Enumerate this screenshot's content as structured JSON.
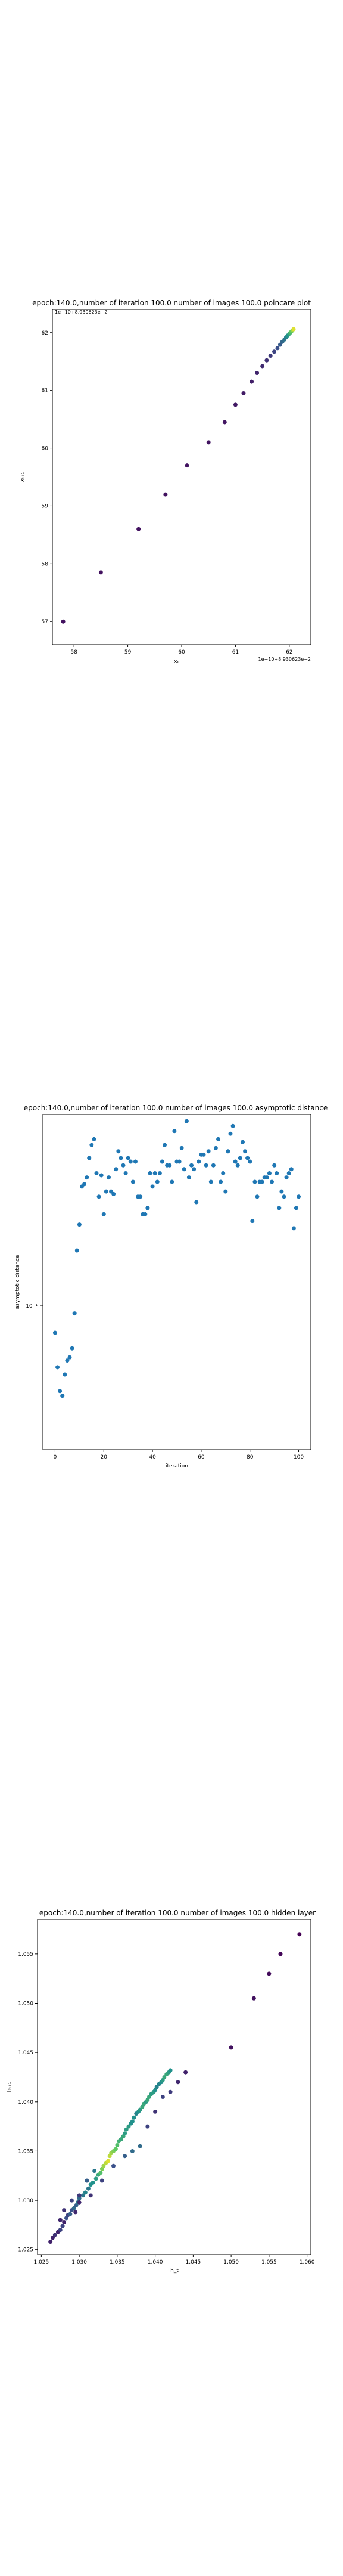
{
  "chart_data": [
    {
      "type": "scatter",
      "title": "epoch:140.0,number of iteration 100.0 number of images 100.0 poincare plot",
      "title_overlay": "1e−10+8.930623e−2",
      "xlabel": "xₜ",
      "ylabel": "xₜ₊₁",
      "offset_label": "1e−10+8.930623e−2",
      "xlim": [
        57.6,
        62.4
      ],
      "ylim": [
        56.6,
        62.4
      ],
      "xticks": [
        58,
        59,
        60,
        61,
        62
      ],
      "yticks": [
        57,
        58,
        59,
        60,
        61,
        62
      ],
      "colormap": "viridis",
      "points": [
        [
          57.8,
          57.0
        ],
        [
          58.5,
          57.85
        ],
        [
          59.2,
          58.6
        ],
        [
          59.7,
          59.2
        ],
        [
          60.1,
          59.7
        ],
        [
          60.5,
          60.1
        ],
        [
          60.8,
          60.45
        ],
        [
          61.0,
          60.75
        ],
        [
          61.15,
          60.95
        ],
        [
          61.3,
          61.15
        ],
        [
          61.4,
          61.3
        ],
        [
          61.5,
          61.42
        ],
        [
          61.58,
          61.52
        ],
        [
          61.65,
          61.6
        ],
        [
          61.72,
          61.67
        ],
        [
          61.78,
          61.73
        ],
        [
          61.83,
          61.79
        ],
        [
          61.87,
          61.84
        ],
        [
          61.91,
          61.88
        ],
        [
          61.94,
          61.92
        ],
        [
          61.97,
          61.95
        ],
        [
          62.0,
          61.98
        ],
        [
          62.02,
          62.0
        ],
        [
          62.04,
          62.02
        ],
        [
          62.06,
          62.04
        ],
        [
          62.08,
          62.06
        ]
      ]
    },
    {
      "type": "scatter",
      "title": "epoch:140.0,number of iteration 100.0  number of images 100.0 asymptotic distance",
      "xlabel": "iteration",
      "ylabel": "asymptotic distance",
      "xlim": [
        -5,
        105
      ],
      "yscale": "log",
      "ylim": [
        0.0105,
        0.42
      ],
      "xticks": [
        0,
        20,
        40,
        60,
        80,
        100
      ],
      "ytick_label": "10⁻¹",
      "color": "#1f77b4",
      "x": [
        0,
        1,
        2,
        3,
        4,
        5,
        6,
        7,
        8,
        9,
        10,
        11,
        12,
        13,
        14,
        15,
        16,
        17,
        18,
        19,
        20,
        21,
        22,
        23,
        24,
        25,
        26,
        27,
        28,
        29,
        30,
        31,
        32,
        33,
        34,
        35,
        36,
        37,
        38,
        39,
        40,
        41,
        42,
        43,
        44,
        45,
        46,
        47,
        48,
        49,
        50,
        51,
        52,
        53,
        54,
        55,
        56,
        57,
        58,
        59,
        60,
        61,
        62,
        63,
        64,
        65,
        66,
        67,
        68,
        69,
        70,
        71,
        72,
        73,
        74,
        75,
        76,
        77,
        78,
        79,
        80,
        81,
        82,
        83,
        84,
        85,
        86,
        87,
        88,
        89,
        90,
        91,
        92,
        93,
        94,
        95,
        96,
        97,
        98,
        99,
        100
      ],
      "y": [
        0.038,
        0.026,
        0.02,
        0.019,
        0.024,
        0.028,
        0.029,
        0.032,
        0.047,
        0.094,
        0.125,
        0.19,
        0.195,
        0.21,
        0.26,
        0.3,
        0.32,
        0.22,
        0.17,
        0.215,
        0.14,
        0.18,
        0.21,
        0.18,
        0.175,
        0.23,
        0.28,
        0.26,
        0.24,
        0.22,
        0.26,
        0.25,
        0.2,
        0.25,
        0.17,
        0.17,
        0.14,
        0.14,
        0.15,
        0.22,
        0.19,
        0.22,
        0.2,
        0.22,
        0.25,
        0.3,
        0.24,
        0.24,
        0.2,
        0.35,
        0.25,
        0.25,
        0.29,
        0.23,
        0.39,
        0.21,
        0.24,
        0.23,
        0.16,
        0.25,
        0.27,
        0.27,
        0.24,
        0.28,
        0.2,
        0.24,
        0.29,
        0.32,
        0.2,
        0.22,
        0.18,
        0.28,
        0.34,
        0.37,
        0.25,
        0.24,
        0.26,
        0.31,
        0.28,
        0.26,
        0.25,
        0.13,
        0.2,
        0.17,
        0.2,
        0.2,
        0.21,
        0.21,
        0.22,
        0.2,
        0.24,
        0.22,
        0.15,
        0.18,
        0.17,
        0.21,
        0.22,
        0.23,
        0.12,
        0.15,
        0.17
      ],
      "highlight_low_y": [
        0.11,
        0.12
      ]
    },
    {
      "type": "scatter",
      "title": "epoch:140.0,number of iteration 100.0  number of images 100.0 hidden layer",
      "xlabel": "h_t",
      "ylabel": "hₜ₊₁",
      "xlim": [
        1.0245,
        1.0605
      ],
      "ylim": [
        1.0245,
        1.0585
      ],
      "xticks": [
        "1.025",
        "1.030",
        "1.035",
        "1.040",
        "1.045",
        "1.050",
        "1.055",
        "1.060"
      ],
      "yticks": [
        "1.025",
        "1.030",
        "1.035",
        "1.040",
        "1.045",
        "1.050",
        "1.055"
      ],
      "colormap": "viridis",
      "points": [
        [
          1.0262,
          1.0258,
          0.1
        ],
        [
          1.0265,
          1.0262,
          0.1
        ],
        [
          1.0268,
          1.0265,
          0.15
        ],
        [
          1.0272,
          1.0268,
          0.1
        ],
        [
          1.0275,
          1.027,
          0.2
        ],
        [
          1.0278,
          1.0274,
          0.2
        ],
        [
          1.028,
          1.0278,
          0.1
        ],
        [
          1.0283,
          1.0282,
          0.25
        ],
        [
          1.0285,
          1.0285,
          0.2
        ],
        [
          1.0288,
          1.0286,
          0.3
        ],
        [
          1.029,
          1.029,
          0.25
        ],
        [
          1.0293,
          1.0292,
          0.35
        ],
        [
          1.0296,
          1.0295,
          0.3
        ],
        [
          1.0298,
          1.0298,
          0.4
        ],
        [
          1.03,
          1.0302,
          0.35
        ],
        [
          1.0305,
          1.0305,
          0.4
        ],
        [
          1.0308,
          1.0308,
          0.45
        ],
        [
          1.0312,
          1.0312,
          0.4
        ],
        [
          1.0315,
          1.0316,
          0.5
        ],
        [
          1.0318,
          1.0318,
          0.5
        ],
        [
          1.0322,
          1.0322,
          0.55
        ],
        [
          1.0325,
          1.0326,
          0.6
        ],
        [
          1.0328,
          1.0328,
          0.7
        ],
        [
          1.033,
          1.0332,
          0.8
        ],
        [
          1.0332,
          1.0335,
          0.85
        ],
        [
          1.0335,
          1.0338,
          0.9
        ],
        [
          1.0338,
          1.034,
          0.95
        ],
        [
          1.034,
          1.0345,
          0.9
        ],
        [
          1.0342,
          1.0348,
          0.85
        ],
        [
          1.0345,
          1.035,
          0.8
        ],
        [
          1.0348,
          1.0352,
          0.75
        ],
        [
          1.035,
          1.0356,
          0.7
        ],
        [
          1.0352,
          1.036,
          0.65
        ],
        [
          1.0355,
          1.0362,
          0.6
        ],
        [
          1.0358,
          1.0365,
          0.6
        ],
        [
          1.036,
          1.0368,
          0.55
        ],
        [
          1.0362,
          1.0372,
          0.55
        ],
        [
          1.0365,
          1.0375,
          0.55
        ],
        [
          1.0368,
          1.0378,
          0.5
        ],
        [
          1.037,
          1.038,
          0.5
        ],
        [
          1.0372,
          1.0384,
          0.5
        ],
        [
          1.0375,
          1.0388,
          0.45
        ],
        [
          1.0378,
          1.039,
          0.5
        ],
        [
          1.038,
          1.0392,
          0.55
        ],
        [
          1.0383,
          1.0395,
          0.6
        ],
        [
          1.0385,
          1.0398,
          0.6
        ],
        [
          1.0388,
          1.04,
          0.55
        ],
        [
          1.039,
          1.0402,
          0.6
        ],
        [
          1.0392,
          1.0405,
          0.6
        ],
        [
          1.0395,
          1.0408,
          0.55
        ],
        [
          1.0398,
          1.041,
          0.55
        ],
        [
          1.04,
          1.0412,
          0.5
        ],
        [
          1.0402,
          1.0415,
          0.45
        ],
        [
          1.0405,
          1.0418,
          0.45
        ],
        [
          1.0408,
          1.042,
          0.5
        ],
        [
          1.041,
          1.0422,
          0.55
        ],
        [
          1.0412,
          1.0425,
          0.6
        ],
        [
          1.0415,
          1.0428,
          0.6
        ],
        [
          1.0418,
          1.043,
          0.55
        ],
        [
          1.042,
          1.0432,
          0.5
        ],
        [
          1.036,
          1.0345,
          0.3
        ],
        [
          1.037,
          1.035,
          0.35
        ],
        [
          1.038,
          1.0355,
          0.35
        ],
        [
          1.0345,
          1.0335,
          0.25
        ],
        [
          1.033,
          1.032,
          0.2
        ],
        [
          1.0315,
          1.0305,
          0.15
        ],
        [
          1.03,
          1.0298,
          0.12
        ],
        [
          1.0295,
          1.0288,
          0.12
        ],
        [
          1.031,
          1.032,
          0.3
        ],
        [
          1.032,
          1.033,
          0.4
        ],
        [
          1.039,
          1.0375,
          0.2
        ],
        [
          1.04,
          1.039,
          0.15
        ],
        [
          1.041,
          1.0405,
          0.2
        ],
        [
          1.042,
          1.041,
          0.18
        ],
        [
          1.043,
          1.042,
          0.12
        ],
        [
          1.044,
          1.043,
          0.1
        ],
        [
          1.03,
          1.0305,
          0.18
        ],
        [
          1.029,
          1.03,
          0.2
        ],
        [
          1.028,
          1.029,
          0.15
        ],
        [
          1.0275,
          1.028,
          0.12
        ],
        [
          1.05,
          1.0455,
          0.05
        ],
        [
          1.053,
          1.0505,
          0.05
        ],
        [
          1.055,
          1.053,
          0.03
        ],
        [
          1.0565,
          1.055,
          0.02
        ],
        [
          1.059,
          1.057,
          0.0
        ]
      ]
    }
  ]
}
